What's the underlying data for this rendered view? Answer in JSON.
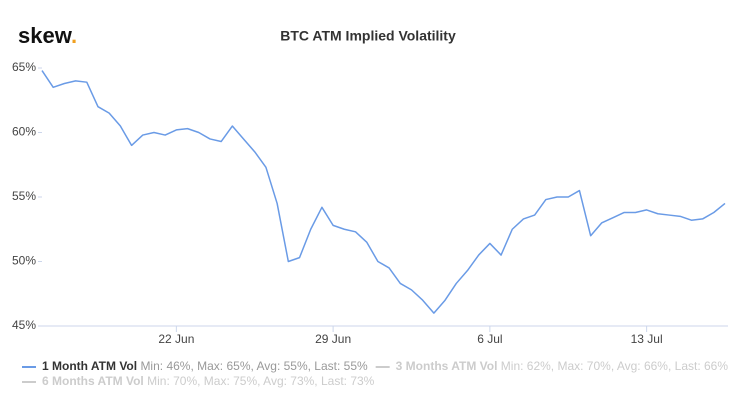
{
  "chart_data": {
    "type": "line",
    "logo": "skew",
    "logo_dot": ".",
    "title": "BTC ATM Implied Volatility",
    "categories": [
      null,
      null,
      null,
      null,
      null,
      null,
      null,
      null,
      null,
      null,
      null,
      null,
      "22 Jun",
      null,
      null,
      null,
      null,
      null,
      null,
      null,
      null,
      null,
      null,
      null,
      null,
      null,
      "29 Jun",
      null,
      null,
      null,
      null,
      null,
      null,
      null,
      null,
      null,
      null,
      null,
      null,
      null,
      "6 Jul",
      null,
      null,
      null,
      null,
      null,
      null,
      null,
      null,
      null,
      null,
      null,
      null,
      null,
      "13 Jul",
      null,
      null,
      null,
      null,
      null,
      null,
      null
    ],
    "ylim": [
      45,
      65
    ],
    "yticks": [
      {
        "value": 45,
        "label": "45%"
      },
      {
        "value": 50,
        "label": "50%"
      },
      {
        "value": 55,
        "label": "55%"
      },
      {
        "value": 60,
        "label": "60%"
      },
      {
        "value": 65,
        "label": "65%"
      }
    ],
    "grid": false,
    "series": [
      {
        "name": "1 Month ATM Vol",
        "stats": "Min: 46%, Max: 65%, Avg: 55%, Last: 55%",
        "color": "#6a9be6",
        "visible": true,
        "values": [
          64.8,
          63.5,
          63.8,
          64,
          63.9,
          62,
          61.5,
          60.5,
          59,
          59.8,
          60,
          59.8,
          60.2,
          60.3,
          60,
          59.5,
          59.3,
          60.5,
          59.5,
          58.5,
          57.3,
          54.5,
          50,
          50.3,
          52.5,
          54.2,
          52.8,
          52.5,
          52.3,
          51.5,
          50,
          49.5,
          48.3,
          47.8,
          47,
          46,
          47,
          48.3,
          49.3,
          50.5,
          51.4,
          50.5,
          52.5,
          53.3,
          53.6,
          54.8,
          55,
          55,
          55.5,
          52,
          53,
          53.4,
          53.8,
          53.8,
          54,
          53.7,
          53.6,
          53.5,
          53.2,
          53.3,
          53.8,
          54.5
        ]
      },
      {
        "name": "3 Months ATM Vol",
        "stats": "Min: 62%, Max: 70%, Avg: 66%, Last: 66%",
        "color": "#d0d0d0",
        "visible": false
      },
      {
        "name": "6 Months ATM Vol",
        "stats": "Min: 70%, Max: 75%, Avg: 73%, Last: 73%",
        "color": "#d0d0d0",
        "visible": false
      }
    ]
  }
}
